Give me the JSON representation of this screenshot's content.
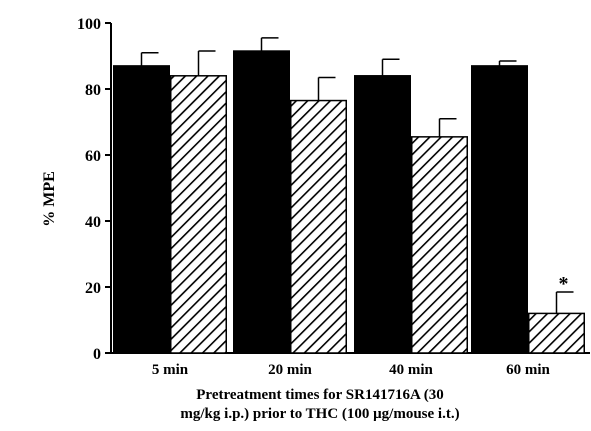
{
  "chart_data": {
    "type": "bar",
    "categories": [
      "5 min",
      "20 min",
      "40 min",
      "60 min"
    ],
    "series": [
      {
        "fill": "solid",
        "values": [
          87,
          91.5,
          84,
          87
        ],
        "error": [
          4,
          4,
          5,
          1.5
        ]
      },
      {
        "fill": "hatched",
        "values": [
          84,
          76.5,
          65.5,
          12
        ],
        "error": [
          7.5,
          7,
          5.5,
          6.5
        ]
      }
    ],
    "annotations": [
      {
        "category": "60 min",
        "series": 1,
        "text": "*"
      }
    ],
    "ylabel": "% MPE",
    "xlabel_lines": [
      "Pretreatment times for SR141716A (30",
      "mg/kg  i.p.) prior to THC (100 μg/mouse  i.t.)"
    ],
    "ylim": [
      0,
      100
    ],
    "yticks": [
      0,
      20,
      40,
      60,
      80,
      100
    ],
    "colors": {
      "solid": "#000000",
      "hatch": "#000000",
      "background": "#ffffff"
    }
  }
}
